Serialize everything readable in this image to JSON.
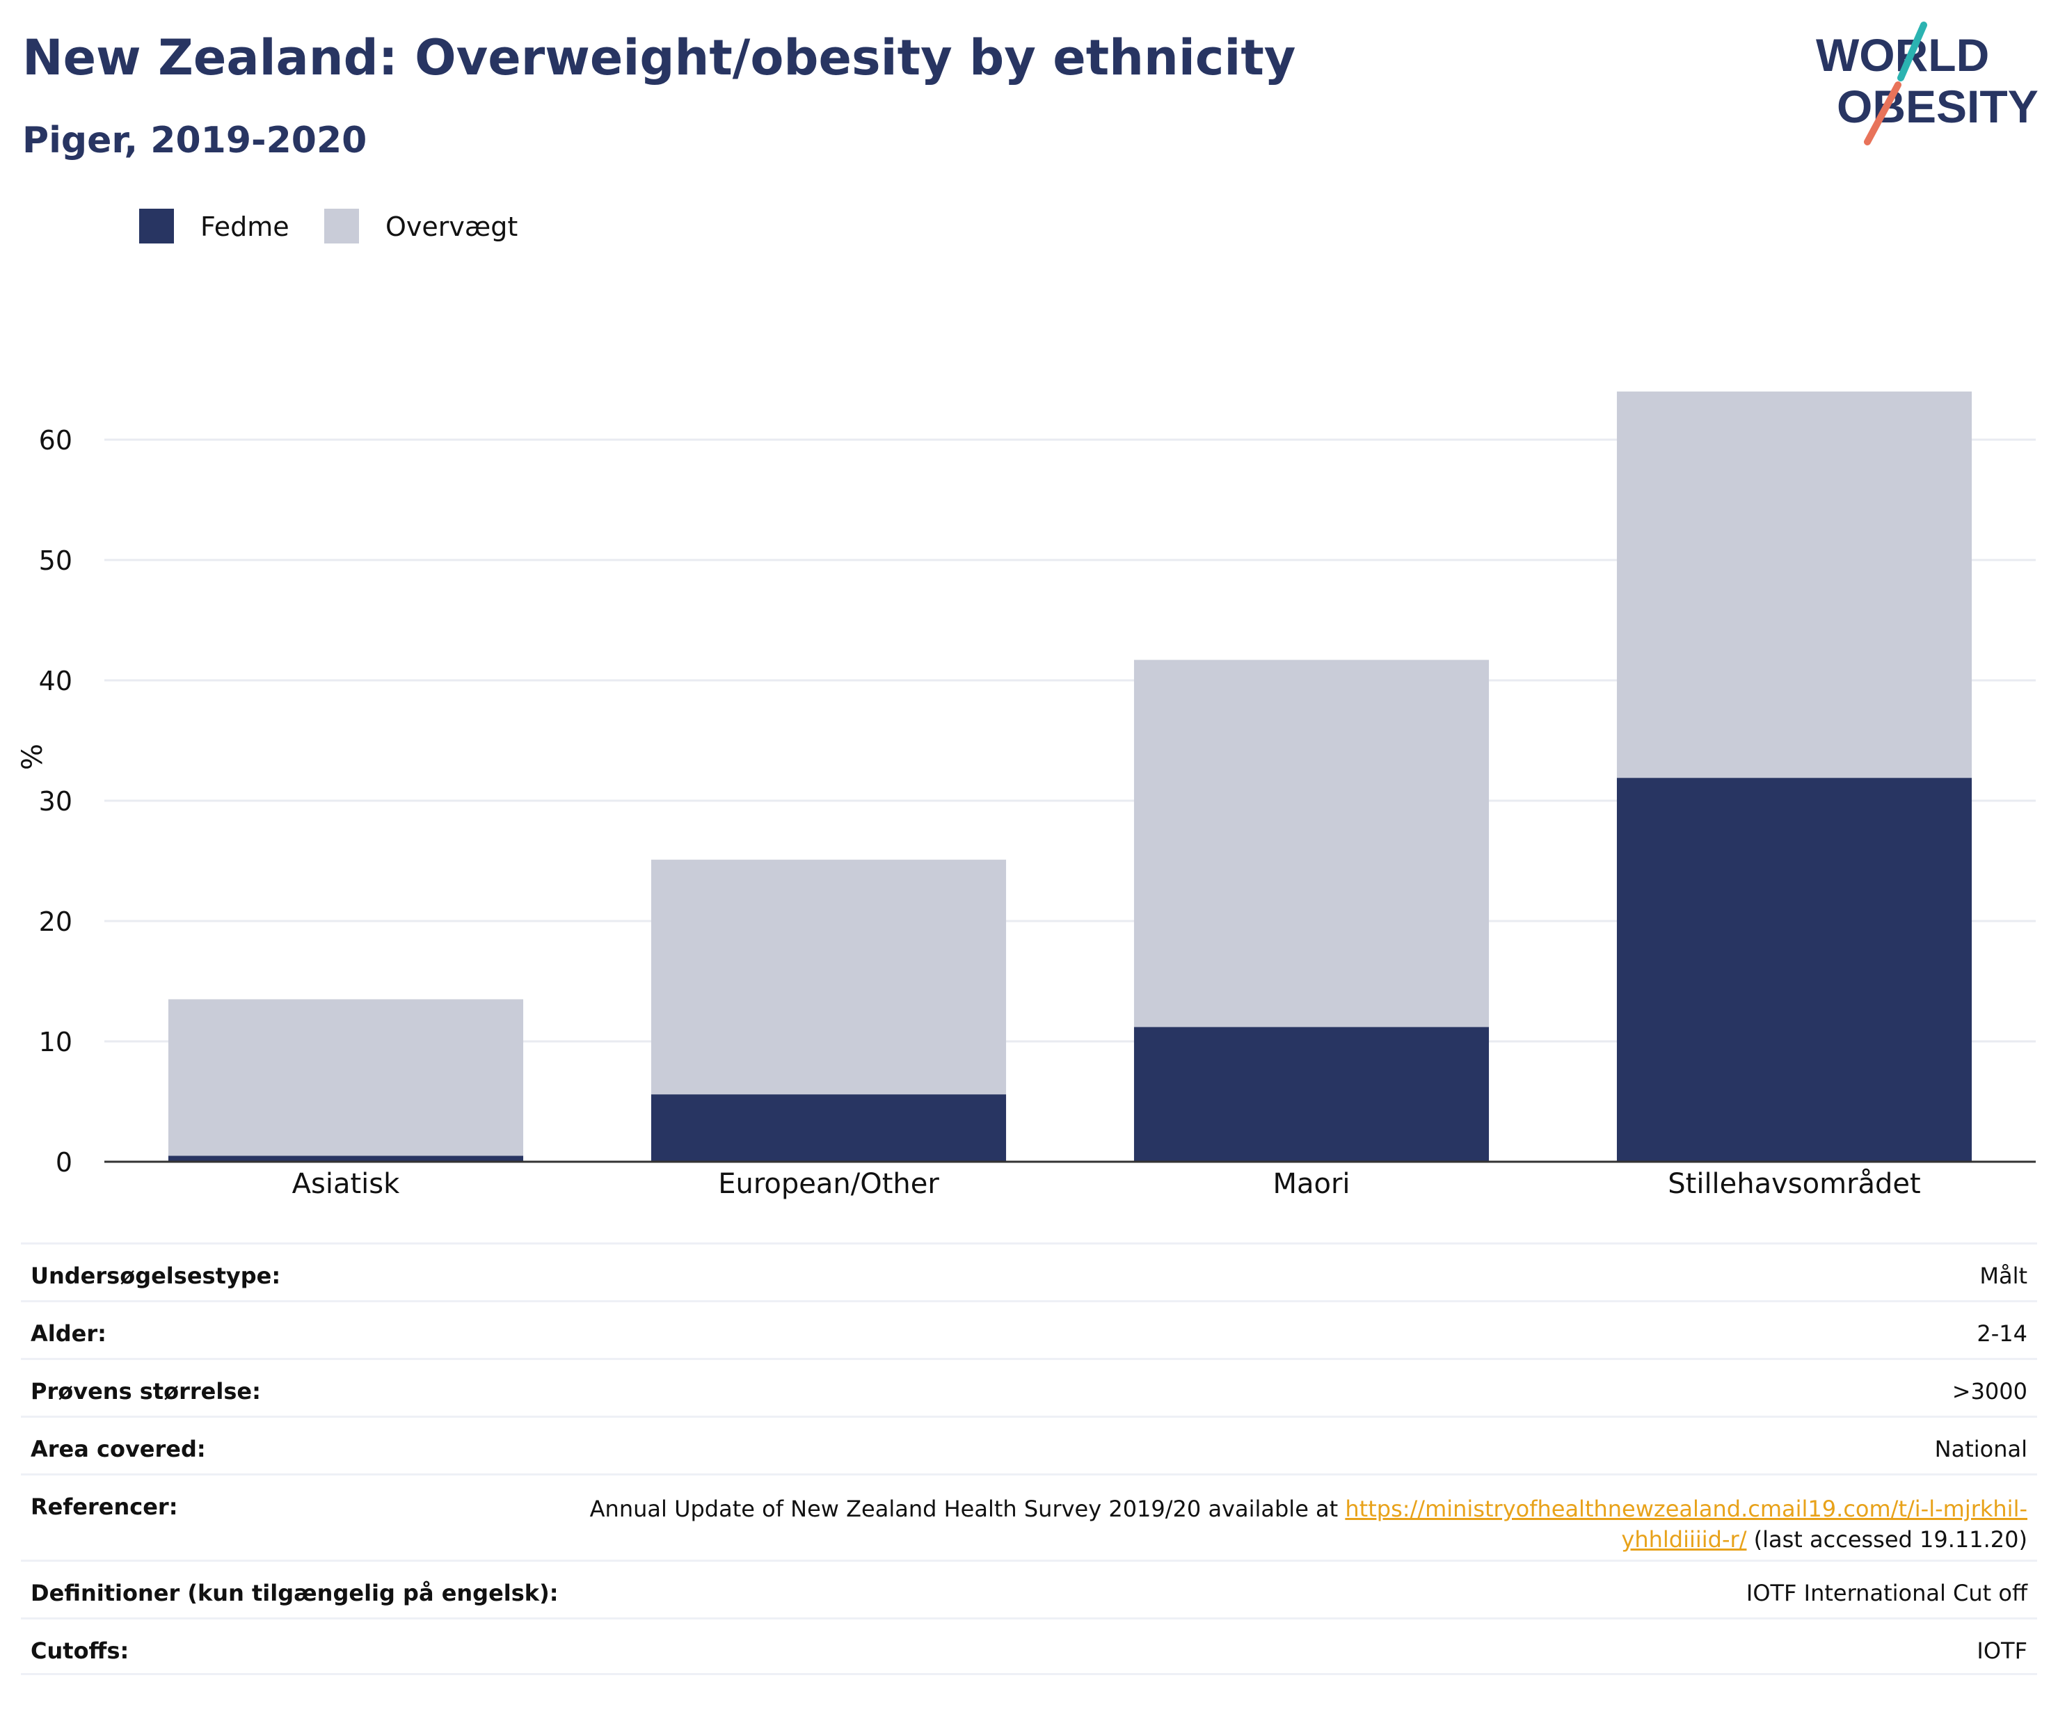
{
  "header": {
    "title": "New Zealand: Overweight/obesity by ethnicity",
    "subtitle": "Piger, 2019-2020",
    "logo_line1": "WORLD",
    "logo_line2": "OBESITY"
  },
  "colors": {
    "fedme": "#283562",
    "overvaegt": "#c9ccd8",
    "grid": "#e9ebf1",
    "axis": "#333333",
    "text": "#111111",
    "title": "#283562",
    "link": "#e8a21a",
    "logo_teal": "#2bb3b1",
    "logo_coral": "#e8735a"
  },
  "chart_data": {
    "type": "bar",
    "stacked": true,
    "categories": [
      "Asiatisk",
      "European/Other",
      "Maori",
      "Stillehavsområdet"
    ],
    "series": [
      {
        "name": "Fedme",
        "values": [
          0.5,
          5.6,
          11.2,
          31.9
        ]
      },
      {
        "name": "Overvægt",
        "values": [
          13.0,
          19.5,
          30.5,
          32.1
        ]
      }
    ],
    "ylabel": "%",
    "ylim": [
      0,
      66
    ],
    "yticks": [
      0,
      10,
      20,
      30,
      40,
      50,
      60
    ],
    "grid": true,
    "legend_position": "top-left"
  },
  "meta": {
    "rows": [
      {
        "key": "Undersøgelsestype:",
        "value": "Målt"
      },
      {
        "key": "Alder:",
        "value": "2-14"
      },
      {
        "key": "Prøvens størrelse:",
        "value": ">3000"
      },
      {
        "key": "Area covered:",
        "value": "National"
      },
      {
        "key": "Referencer:",
        "value_pre": "Annual Update of New Zealand Health Survey 2019/20 available at ",
        "link1": "https://ministryofhealthnewzealand.cmail19.com/t/i-l-mjrkhil-",
        "link2": "yhhldiiiid-r/",
        "value_post": " (last accessed 19.11.20)"
      },
      {
        "key": "Definitioner (kun tilgængelig på engelsk):",
        "value": "IOTF International Cut off"
      },
      {
        "key": "Cutoffs:",
        "value": "IOTF"
      }
    ]
  }
}
